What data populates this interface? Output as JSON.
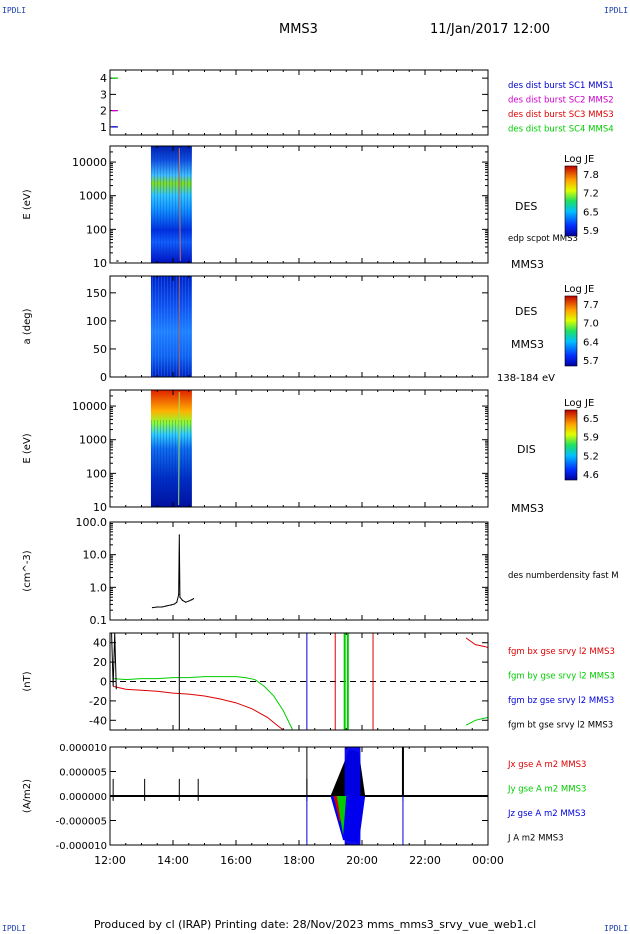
{
  "header": {
    "corner_label": "IPDLI",
    "spacecraft": "MMS3",
    "datetime": "11/Jan/2017 12:00"
  },
  "footer": {
    "text": "Produced by cl (IRAP)   Printing date: 28/Nov/2023   mms_mms3_srvy_vue_web1.cl"
  },
  "time_axis": {
    "range": [
      "12:00",
      "00:00"
    ],
    "ticks": [
      "12:00",
      "14:00",
      "16:00",
      "18:00",
      "20:00",
      "22:00",
      "00:00"
    ],
    "minor_interval_min": 30
  },
  "colors": {
    "bx": "#dd0000",
    "by": "#00cc00",
    "bz": "#0000dd",
    "bt": "#000000",
    "sc1": "#0000cc",
    "sc2": "#cc00cc",
    "sc3": "#dd0000",
    "sc4": "#00cc00"
  },
  "chart_data": [
    {
      "id": "burst",
      "type": "scatter",
      "ylim": [
        0.5,
        4.5
      ],
      "yticks": [
        "1",
        "2",
        "3",
        "4"
      ],
      "segments": [
        {
          "name": "des dist burst SC1 MMS1",
          "y": 1,
          "x_hours": [
            12.05,
            12.25
          ],
          "color": "#0000cc"
        },
        {
          "name": "des dist burst SC2 MMS2",
          "y": 2,
          "x_hours": [
            12.05,
            12.25
          ],
          "color": "#cc00cc"
        },
        {
          "name": "des dist burst SC3 MMS3",
          "y": 3,
          "x_hours": [],
          "color": "#dd0000"
        },
        {
          "name": "des dist burst SC4 MMS4",
          "y": 4,
          "x_hours": [
            12.05,
            12.25
          ],
          "color": "#00cc00"
        }
      ],
      "legend": [
        "des dist burst SC1 MMS1",
        "des dist burst SC2 MMS2",
        "des dist burst SC3 MMS3",
        "des dist burst SC4 MMS4"
      ]
    },
    {
      "id": "des_energy",
      "type": "heatmap",
      "ylabel": "E (eV)",
      "yscale": "log",
      "ylim": [
        10,
        30000
      ],
      "yticks": [
        "10",
        "100",
        "1000",
        "10000"
      ],
      "instrument": "DES",
      "probe": "MMS3",
      "overlay_label": "edp scpot MMS3",
      "colorbar": {
        "title": "Log JE",
        "ticks": [
          "7.8",
          "7.2",
          "6.5",
          "5.9"
        ],
        "range": [
          5.9,
          7.8
        ]
      },
      "data_x_hours": [
        13.3,
        14.6
      ],
      "overlay_x_hours": 14.2
    },
    {
      "id": "des_pitch",
      "type": "heatmap",
      "ylabel": "a (deg)",
      "ylim": [
        0,
        180
      ],
      "yticks": [
        "0",
        "50",
        "100",
        "150"
      ],
      "instrument": "DES",
      "probe": "MMS3",
      "energy_range": "138-184 eV",
      "colorbar": {
        "title": "Log JE",
        "ticks": [
          "7.7",
          "7.0",
          "6.4",
          "5.7"
        ],
        "range": [
          5.7,
          7.7
        ]
      },
      "data_x_hours": [
        13.3,
        14.6
      ]
    },
    {
      "id": "dis_energy",
      "type": "heatmap",
      "ylabel": "E (eV)",
      "yscale": "log",
      "ylim": [
        10,
        30000
      ],
      "yticks": [
        "10",
        "100",
        "1000",
        "10000"
      ],
      "instrument": "DIS",
      "probe": "MMS3",
      "colorbar": {
        "title": "Log JE",
        "ticks": [
          "6.5",
          "5.9",
          "5.2",
          "4.6"
        ],
        "range": [
          4.6,
          6.5
        ]
      },
      "data_x_hours": [
        13.3,
        14.6
      ]
    },
    {
      "id": "density",
      "type": "line",
      "ylabel": "(cm^-3)",
      "yscale": "log",
      "ylim": [
        0.1,
        100
      ],
      "yticks": [
        "0.1",
        "1.0",
        "10.0",
        "100.0"
      ],
      "series": [
        {
          "name": "des numberdensity fast MMS3",
          "x_hours": [
            13.35,
            13.5,
            13.65,
            13.8,
            13.95,
            14.05,
            14.12,
            14.18,
            14.2,
            14.22,
            14.3,
            14.4,
            14.5,
            14.6,
            14.65
          ],
          "y": [
            0.24,
            0.25,
            0.25,
            0.27,
            0.29,
            0.31,
            0.35,
            0.6,
            40,
            0.5,
            0.4,
            0.35,
            0.38,
            0.42,
            0.45
          ]
        }
      ],
      "legend": [
        "des numberdensity fast M"
      ]
    },
    {
      "id": "fgm",
      "type": "line",
      "ylabel": "(nT)",
      "ylim": [
        -50,
        50
      ],
      "yticks": [
        "-40",
        "-20",
        "0",
        "20",
        "40"
      ],
      "zero_line": true,
      "series": [
        {
          "name": "fgm bx gse srvy l2 MMS3",
          "color": "#dd0000",
          "x_hours": [
            12.1,
            12.5,
            13.0,
            13.5,
            14.0,
            14.5,
            15.0,
            15.5,
            16.0,
            16.5,
            17.0,
            17.3,
            17.5
          ],
          "y": [
            -5,
            -8,
            -9,
            -10,
            -12,
            -13,
            -15,
            -18,
            -22,
            -28,
            -37,
            -45,
            -50
          ]
        },
        {
          "name": "fgm by gse srvy l2 MMS3",
          "color": "#00cc00",
          "x_hours": [
            12.1,
            12.5,
            13.0,
            13.5,
            14.0,
            14.5,
            15.0,
            15.5,
            16.0,
            16.3,
            16.6,
            16.9,
            17.2,
            17.5,
            17.8
          ],
          "y": [
            3,
            2,
            3,
            3,
            4,
            4,
            5,
            5,
            5,
            4,
            2,
            -5,
            -15,
            -30,
            -50
          ]
        },
        {
          "name": "fgm bz gse srvy l2 MMS3",
          "color": "#0000dd",
          "x_hours": [],
          "y": []
        },
        {
          "name": "fgm bt gse srvy l2 MMS3",
          "color": "#000000",
          "x_hours": [],
          "y": []
        }
      ],
      "vertical_lines": [
        {
          "x_hours": 14.2,
          "color": "#000000"
        },
        {
          "x_hours": 18.25,
          "color": "#0000dd"
        },
        {
          "x_hours": 19.15,
          "color": "#dd0000"
        },
        {
          "x_hours": 19.45,
          "color": "#00cc00"
        },
        {
          "x_hours": 19.55,
          "color": "#00cc00"
        },
        {
          "x_hours": 20.35,
          "color": "#dd0000"
        }
      ],
      "legend": [
        "fgm bx gse srvy l2 MMS3",
        "fgm by gse srvy l2 MMS3",
        "fgm bz gse srvy l2 MMS3",
        "fgm bt gse srvy l2 MMS3"
      ]
    },
    {
      "id": "current",
      "type": "line",
      "ylabel": "(A/m2)",
      "ylim": [
        -1e-05,
        1e-05
      ],
      "yticks": [
        "-0.000010",
        "-0.000005",
        "0.000000",
        "0.000005",
        "0.000010"
      ],
      "legend": [
        "Jx gse A m2 MMS3",
        "Jy gse A m2 MMS3",
        "Jz gse A m2 MMS3",
        "J A m2 MMS3"
      ],
      "spike_events_hours": [
        12.1,
        13.1,
        14.2,
        14.8,
        18.25,
        21.3
      ],
      "burst_region_hours": [
        19.0,
        20.1
      ],
      "vertical_lines": [
        {
          "x_hours": 18.25,
          "color": "#0000dd"
        },
        {
          "x_hours": 21.3,
          "color": "#0000dd"
        }
      ]
    }
  ]
}
